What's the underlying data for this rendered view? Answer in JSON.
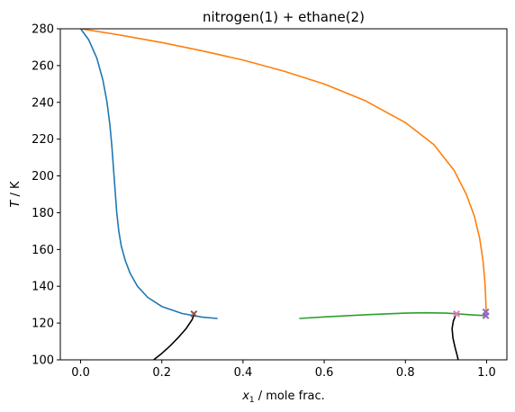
{
  "chart_data": {
    "type": "line",
    "title": "nitrogen(1) + ethane(2)",
    "xlabel": {
      "var": "x",
      "sub": "1",
      "rest": " / mole frac."
    },
    "ylabel": {
      "var": "T",
      "rest": " / K"
    },
    "xlim": [
      -0.05,
      1.05
    ],
    "ylim": [
      100,
      280
    ],
    "xticks": [
      0.0,
      0.2,
      0.4,
      0.6,
      0.8,
      1.0
    ],
    "xtick_labels": [
      "0.0",
      "0.2",
      "0.4",
      "0.6",
      "0.8",
      "1.0"
    ],
    "yticks": [
      100,
      120,
      140,
      160,
      180,
      200,
      220,
      240,
      260,
      280
    ],
    "ytick_labels": [
      "100",
      "120",
      "140",
      "160",
      "180",
      "200",
      "220",
      "240",
      "260",
      "280"
    ],
    "grid": false,
    "legend": "none",
    "series": [
      {
        "color": "#1f77b4",
        "points": [
          [
            -0.01,
            281
          ],
          [
            0.0,
            280
          ],
          [
            0.02,
            274
          ],
          [
            0.04,
            264
          ],
          [
            0.055,
            252
          ],
          [
            0.065,
            240
          ],
          [
            0.072,
            228
          ],
          [
            0.077,
            216
          ],
          [
            0.081,
            204
          ],
          [
            0.085,
            192
          ],
          [
            0.089,
            180
          ],
          [
            0.094,
            170
          ],
          [
            0.1,
            162
          ],
          [
            0.11,
            154
          ],
          [
            0.122,
            147
          ],
          [
            0.14,
            140
          ],
          [
            0.165,
            134
          ],
          [
            0.2,
            129
          ],
          [
            0.25,
            125.2
          ],
          [
            0.3,
            123.2
          ],
          [
            0.336,
            122.5
          ]
        ]
      },
      {
        "color": "#ff7f0e",
        "points": [
          [
            0.0,
            280
          ],
          [
            0.1,
            276.5
          ],
          [
            0.2,
            272.5
          ],
          [
            0.3,
            268
          ],
          [
            0.4,
            263
          ],
          [
            0.5,
            257
          ],
          [
            0.6,
            250
          ],
          [
            0.7,
            241
          ],
          [
            0.8,
            229
          ],
          [
            0.87,
            217
          ],
          [
            0.92,
            203
          ],
          [
            0.95,
            190
          ],
          [
            0.97,
            178
          ],
          [
            0.983,
            166
          ],
          [
            0.991,
            154
          ],
          [
            0.996,
            142
          ],
          [
            0.998,
            132
          ],
          [
            0.999,
            126
          ],
          [
            1.0,
            124
          ]
        ]
      },
      {
        "color": "#2ca02c",
        "points": [
          [
            0.54,
            122.5
          ],
          [
            0.6,
            123.3
          ],
          [
            0.7,
            124.5
          ],
          [
            0.8,
            125.4
          ],
          [
            0.85,
            125.6
          ],
          [
            0.9,
            125.4
          ],
          [
            0.93,
            125.0
          ],
          [
            0.96,
            124.5
          ],
          [
            1.0,
            124
          ]
        ]
      },
      {
        "color": "#000000",
        "points": [
          [
            0.18,
            100
          ],
          [
            0.2,
            103.5
          ],
          [
            0.22,
            107.5
          ],
          [
            0.24,
            112
          ],
          [
            0.26,
            117
          ],
          [
            0.275,
            122
          ],
          [
            0.28,
            125
          ]
        ]
      },
      {
        "color": "#000000",
        "points": [
          [
            0.925,
            125
          ],
          [
            0.918,
            121
          ],
          [
            0.915,
            117
          ],
          [
            0.917,
            112
          ],
          [
            0.922,
            107
          ],
          [
            0.928,
            102
          ],
          [
            0.93,
            100
          ]
        ]
      }
    ],
    "markers": [
      {
        "x": 0.279,
        "y": 125,
        "color": "#8c564b"
      },
      {
        "x": 0.926,
        "y": 125,
        "color": "#e377c2"
      },
      {
        "x": 0.998,
        "y": 124,
        "color": "#9467bd"
      },
      {
        "x": 0.998,
        "y": 126,
        "color": "#9467bd"
      }
    ]
  }
}
